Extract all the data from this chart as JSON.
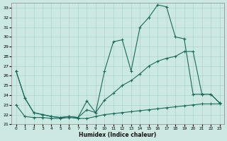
{
  "xlabel": "Humidex (Indice chaleur)",
  "ylabel": "",
  "bg_color": "#cce8e2",
  "line_color": "#1a6b5a",
  "grid_color": "#aad4cc",
  "ylim": [
    21,
    33.5
  ],
  "xlim": [
    -0.5,
    23.5
  ],
  "yticks": [
    21,
    22,
    23,
    24,
    25,
    26,
    27,
    28,
    29,
    30,
    31,
    32,
    33
  ],
  "xticks": [
    0,
    1,
    2,
    3,
    4,
    5,
    6,
    7,
    8,
    9,
    10,
    11,
    12,
    13,
    14,
    15,
    16,
    17,
    18,
    19,
    20,
    21,
    22,
    23
  ],
  "line1": {
    "x": [
      0,
      1,
      2,
      3,
      4,
      5,
      6,
      7,
      8,
      9,
      10,
      11,
      12,
      13,
      14,
      15,
      16,
      17,
      18,
      19,
      20,
      21,
      22,
      23
    ],
    "y": [
      23.0,
      21.8,
      21.7,
      21.7,
      21.6,
      21.6,
      21.7,
      21.6,
      21.6,
      21.8,
      22.0,
      22.1,
      22.2,
      22.3,
      22.4,
      22.5,
      22.6,
      22.7,
      22.8,
      22.9,
      23.0,
      23.1,
      23.1,
      23.1
    ]
  },
  "line2": {
    "x": [
      0,
      1,
      2,
      3,
      4,
      5,
      6,
      7,
      8,
      9,
      10,
      11,
      12,
      13,
      14,
      15,
      16,
      17,
      18,
      19,
      20,
      21,
      22,
      23
    ],
    "y": [
      26.5,
      23.7,
      22.2,
      22.0,
      21.8,
      21.7,
      21.8,
      21.7,
      22.5,
      22.2,
      23.5,
      24.2,
      25.0,
      25.5,
      26.2,
      27.0,
      27.5,
      27.8,
      28.0,
      28.5,
      28.5,
      24.1,
      24.1,
      23.2
    ]
  },
  "line3": {
    "x": [
      0,
      1,
      2,
      3,
      4,
      5,
      6,
      7,
      8,
      9,
      10,
      11,
      12,
      13,
      14,
      15,
      16,
      17,
      18,
      19,
      20,
      21,
      22,
      23
    ],
    "y": [
      26.5,
      23.7,
      22.2,
      22.0,
      21.8,
      21.7,
      21.8,
      21.7,
      23.4,
      22.2,
      26.5,
      29.5,
      29.7,
      26.5,
      31.0,
      32.0,
      33.3,
      33.1,
      30.0,
      29.8,
      24.1,
      24.1,
      24.1,
      23.2
    ]
  }
}
